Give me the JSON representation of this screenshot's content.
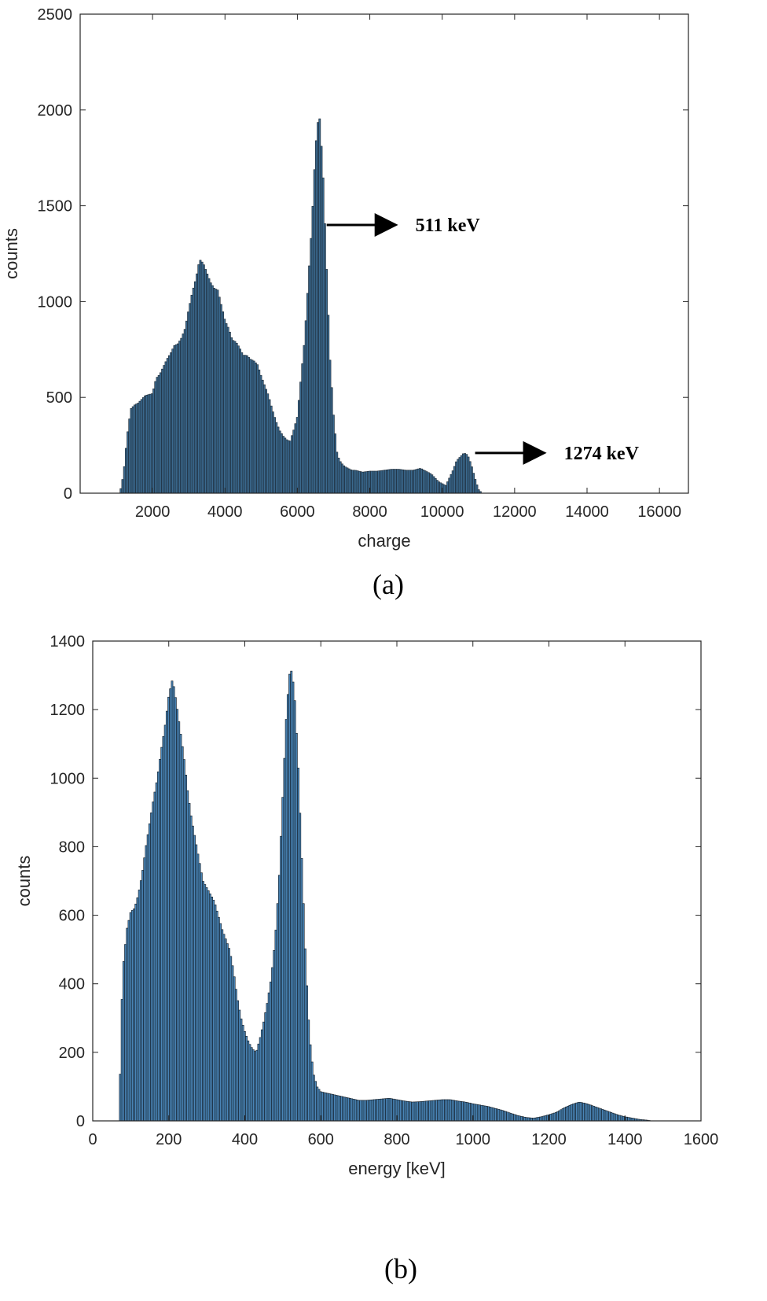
{
  "chart_data": [
    {
      "type": "bar",
      "caption": "(a)",
      "xlabel": "charge",
      "ylabel": "counts",
      "xlim": [
        0,
        16800
      ],
      "ylim": [
        0,
        2500
      ],
      "xticks": [
        2000,
        4000,
        6000,
        8000,
        10000,
        12000,
        14000,
        16000
      ],
      "yticks": [
        0,
        500,
        1000,
        1500,
        2000,
        2500
      ],
      "bar_color": "#3b6a8f",
      "edge_color": "#1a2530",
      "annotations": [
        {
          "text": "511 keV",
          "x": 6700,
          "y": 1400
        },
        {
          "text": "1274 keV",
          "x": 10800,
          "y": 210
        }
      ],
      "points": [
        [
          1100,
          0
        ],
        [
          1200,
          100
        ],
        [
          1300,
          300
        ],
        [
          1400,
          440
        ],
        [
          1500,
          460
        ],
        [
          1600,
          470
        ],
        [
          1700,
          490
        ],
        [
          1800,
          510
        ],
        [
          2000,
          520
        ],
        [
          2100,
          600
        ],
        [
          2200,
          620
        ],
        [
          2300,
          660
        ],
        [
          2400,
          700
        ],
        [
          2500,
          730
        ],
        [
          2600,
          770
        ],
        [
          2700,
          780
        ],
        [
          2800,
          810
        ],
        [
          2900,
          860
        ],
        [
          3000,
          960
        ],
        [
          3100,
          1050
        ],
        [
          3200,
          1120
        ],
        [
          3300,
          1220
        ],
        [
          3400,
          1200
        ],
        [
          3500,
          1150
        ],
        [
          3600,
          1100
        ],
        [
          3700,
          1070
        ],
        [
          3800,
          1060
        ],
        [
          3900,
          980
        ],
        [
          4000,
          900
        ],
        [
          4100,
          860
        ],
        [
          4200,
          800
        ],
        [
          4300,
          790
        ],
        [
          4400,
          760
        ],
        [
          4500,
          720
        ],
        [
          4600,
          720
        ],
        [
          4700,
          700
        ],
        [
          4800,
          690
        ],
        [
          4900,
          670
        ],
        [
          5000,
          610
        ],
        [
          5100,
          560
        ],
        [
          5200,
          510
        ],
        [
          5300,
          440
        ],
        [
          5400,
          380
        ],
        [
          5500,
          330
        ],
        [
          5600,
          300
        ],
        [
          5700,
          280
        ],
        [
          5800,
          270
        ],
        [
          5900,
          330
        ],
        [
          6000,
          400
        ],
        [
          6100,
          600
        ],
        [
          6200,
          800
        ],
        [
          6300,
          1100
        ],
        [
          6400,
          1400
        ],
        [
          6500,
          1800
        ],
        [
          6600,
          2000
        ],
        [
          6700,
          1700
        ],
        [
          6800,
          1200
        ],
        [
          6900,
          700
        ],
        [
          7000,
          400
        ],
        [
          7100,
          200
        ],
        [
          7200,
          160
        ],
        [
          7300,
          140
        ],
        [
          7400,
          130
        ],
        [
          7500,
          120
        ],
        [
          7600,
          120
        ],
        [
          7800,
          110
        ],
        [
          8000,
          115
        ],
        [
          8200,
          115
        ],
        [
          8400,
          120
        ],
        [
          8600,
          125
        ],
        [
          8800,
          125
        ],
        [
          9000,
          120
        ],
        [
          9200,
          120
        ],
        [
          9400,
          130
        ],
        [
          9500,
          120
        ],
        [
          9700,
          100
        ],
        [
          9900,
          60
        ],
        [
          10100,
          40
        ],
        [
          10200,
          80
        ],
        [
          10300,
          120
        ],
        [
          10400,
          170
        ],
        [
          10500,
          190
        ],
        [
          10600,
          210
        ],
        [
          10700,
          200
        ],
        [
          10800,
          150
        ],
        [
          10900,
          80
        ],
        [
          11000,
          20
        ],
        [
          11100,
          0
        ]
      ]
    },
    {
      "type": "bar",
      "caption": "(b)",
      "xlabel": "energy [keV]",
      "ylabel": "counts",
      "xlim": [
        0,
        1600
      ],
      "ylim": [
        0,
        1400
      ],
      "xticks": [
        0,
        200,
        400,
        600,
        800,
        1000,
        1200,
        1400,
        1600
      ],
      "yticks": [
        0,
        200,
        400,
        600,
        800,
        1000,
        1200,
        1400
      ],
      "bar_color": "#4a86b8",
      "edge_color": "#101820",
      "points": [
        [
          70,
          0
        ],
        [
          75,
          300
        ],
        [
          80,
          450
        ],
        [
          90,
          560
        ],
        [
          100,
          610
        ],
        [
          110,
          620
        ],
        [
          120,
          660
        ],
        [
          130,
          720
        ],
        [
          140,
          800
        ],
        [
          150,
          870
        ],
        [
          160,
          940
        ],
        [
          170,
          1000
        ],
        [
          180,
          1080
        ],
        [
          190,
          1150
        ],
        [
          200,
          1240
        ],
        [
          210,
          1290
        ],
        [
          220,
          1220
        ],
        [
          230,
          1140
        ],
        [
          240,
          1060
        ],
        [
          250,
          960
        ],
        [
          260,
          880
        ],
        [
          270,
          820
        ],
        [
          280,
          760
        ],
        [
          290,
          700
        ],
        [
          300,
          680
        ],
        [
          310,
          660
        ],
        [
          320,
          640
        ],
        [
          330,
          600
        ],
        [
          340,
          560
        ],
        [
          350,
          530
        ],
        [
          360,
          500
        ],
        [
          370,
          440
        ],
        [
          380,
          360
        ],
        [
          390,
          300
        ],
        [
          400,
          260
        ],
        [
          410,
          230
        ],
        [
          420,
          210
        ],
        [
          430,
          200
        ],
        [
          440,
          240
        ],
        [
          450,
          290
        ],
        [
          460,
          350
        ],
        [
          470,
          420
        ],
        [
          480,
          530
        ],
        [
          490,
          700
        ],
        [
          500,
          950
        ],
        [
          510,
          1200
        ],
        [
          520,
          1330
        ],
        [
          530,
          1260
        ],
        [
          540,
          1050
        ],
        [
          550,
          760
        ],
        [
          560,
          470
        ],
        [
          570,
          250
        ],
        [
          580,
          140
        ],
        [
          590,
          100
        ],
        [
          600,
          85
        ],
        [
          620,
          80
        ],
        [
          640,
          75
        ],
        [
          660,
          70
        ],
        [
          680,
          65
        ],
        [
          700,
          60
        ],
        [
          720,
          60
        ],
        [
          740,
          62
        ],
        [
          760,
          64
        ],
        [
          780,
          66
        ],
        [
          800,
          62
        ],
        [
          820,
          58
        ],
        [
          840,
          55
        ],
        [
          860,
          56
        ],
        [
          880,
          58
        ],
        [
          900,
          60
        ],
        [
          920,
          62
        ],
        [
          940,
          62
        ],
        [
          960,
          58
        ],
        [
          980,
          55
        ],
        [
          1000,
          50
        ],
        [
          1020,
          46
        ],
        [
          1040,
          42
        ],
        [
          1060,
          36
        ],
        [
          1080,
          30
        ],
        [
          1100,
          22
        ],
        [
          1120,
          15
        ],
        [
          1140,
          10
        ],
        [
          1160,
          8
        ],
        [
          1180,
          12
        ],
        [
          1200,
          18
        ],
        [
          1220,
          25
        ],
        [
          1240,
          38
        ],
        [
          1260,
          48
        ],
        [
          1280,
          55
        ],
        [
          1300,
          50
        ],
        [
          1320,
          42
        ],
        [
          1340,
          34
        ],
        [
          1360,
          26
        ],
        [
          1380,
          18
        ],
        [
          1400,
          12
        ],
        [
          1420,
          8
        ],
        [
          1440,
          4
        ],
        [
          1460,
          2
        ],
        [
          1470,
          0
        ]
      ]
    }
  ]
}
